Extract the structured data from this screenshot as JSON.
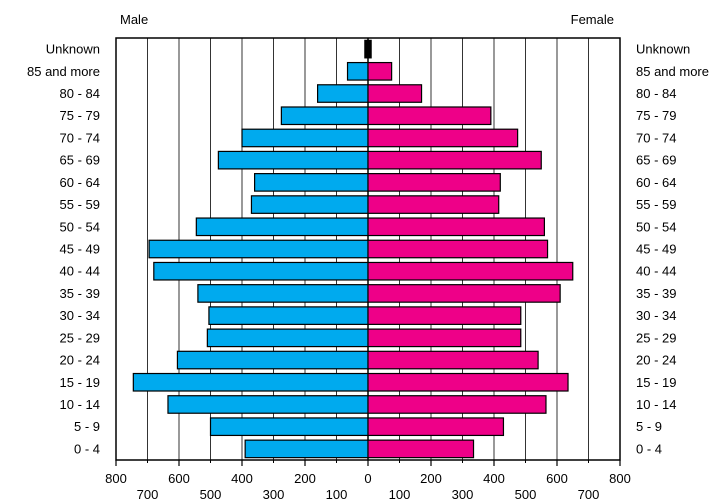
{
  "chart_data": {
    "type": "bar",
    "layout": "population-pyramid",
    "left_title": "Male",
    "right_title": "Female",
    "categories": [
      "0 - 4",
      "5 - 9",
      "10 - 14",
      "15 - 19",
      "20 - 24",
      "25 - 29",
      "30 - 34",
      "35 - 39",
      "40 - 44",
      "45 - 49",
      "50 - 54",
      "55 - 59",
      "60 - 64",
      "65 - 69",
      "70 - 74",
      "75 - 79",
      "80 - 84",
      "85 and more",
      "Unknown"
    ],
    "left_labels": [
      "0 - 4",
      "5 - 9",
      "10 - 14",
      "15 - 19",
      "20 - 24",
      "25 - 29",
      "30 - 34",
      "35 - 39",
      "40 - 44",
      "45 - 49",
      "50 - 54",
      "55 - 59",
      "60 - 64",
      "65 - 69",
      "70 - 74",
      "75 - 79",
      "80 - 84",
      "85 and more",
      "Unknown"
    ],
    "right_labels": [
      "0 - 4",
      "5 - 9",
      "10 - 14",
      "15 - 19",
      "20 - 24",
      "25 - 29",
      "30 - 34",
      "35 - 39",
      "40 - 44",
      "45 - 49",
      "50 - 54",
      "55 - 59",
      "60 - 64",
      "65 - 69",
      "70 - 74",
      "75 - 79",
      "80 - 84",
      "85 and more",
      "Unknown"
    ],
    "series": [
      {
        "name": "Male",
        "color": "#00aaee",
        "values": [
          390,
          500,
          635,
          745,
          605,
          510,
          505,
          540,
          680,
          695,
          545,
          370,
          360,
          475,
          400,
          275,
          160,
          65,
          10
        ]
      },
      {
        "name": "Female",
        "color": "#ee0088",
        "values": [
          335,
          430,
          565,
          635,
          540,
          485,
          485,
          610,
          650,
          570,
          560,
          415,
          420,
          550,
          475,
          390,
          170,
          75,
          10
        ]
      }
    ],
    "xlim": [
      -800,
      800
    ],
    "major_ticks": [
      {
        "value": -800,
        "label": "800"
      },
      {
        "value": -600,
        "label": "600"
      },
      {
        "value": -400,
        "label": "400"
      },
      {
        "value": -200,
        "label": "200"
      },
      {
        "value": 0,
        "label": "0"
      },
      {
        "value": 200,
        "label": "200"
      },
      {
        "value": 400,
        "label": "400"
      },
      {
        "value": 600,
        "label": "600"
      },
      {
        "value": 800,
        "label": "800"
      }
    ],
    "minor_ticks": [
      {
        "value": -700,
        "label": "700"
      },
      {
        "value": -500,
        "label": "500"
      },
      {
        "value": -300,
        "label": "300"
      },
      {
        "value": -100,
        "label": "100"
      },
      {
        "value": 100,
        "label": "100"
      },
      {
        "value": 300,
        "label": "300"
      },
      {
        "value": 500,
        "label": "500"
      },
      {
        "value": 700,
        "label": "700"
      }
    ],
    "gridlines": [
      -700,
      -600,
      -500,
      -400,
      -300,
      -200,
      -100,
      100,
      200,
      300,
      400,
      500,
      600,
      700
    ],
    "grid": true
  }
}
